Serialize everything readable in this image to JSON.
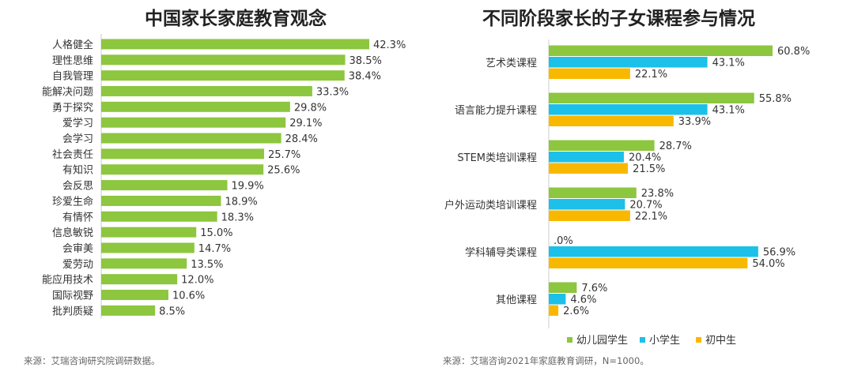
{
  "chart_data": [
    {
      "type": "bar",
      "orientation": "horizontal",
      "title": "中国家长家庭教育观念",
      "categories": [
        "人格健全",
        "理性思维",
        "自我管理",
        "能解决问题",
        "勇于探究",
        "爱学习",
        "会学习",
        "社会责任",
        "有知识",
        "会反思",
        "珍爱生命",
        "有情怀",
        "信息敏锐",
        "会审美",
        "爱劳动",
        "能应用技术",
        "国际视野",
        "批判质疑"
      ],
      "values": [
        42.3,
        38.5,
        38.4,
        33.3,
        29.8,
        29.1,
        28.4,
        25.7,
        25.6,
        19.9,
        18.9,
        18.3,
        15.0,
        14.7,
        13.5,
        12.0,
        10.6,
        8.5
      ],
      "value_labels": [
        "42.3%",
        "38.5%",
        "38.4%",
        "33.3%",
        "29.8%",
        "29.1%",
        "28.4%",
        "25.7%",
        "25.6%",
        "19.9%",
        "18.9%",
        "18.3%",
        "15.0%",
        "14.7%",
        "13.5%",
        "12.0%",
        "10.6%",
        "8.5%"
      ],
      "color": "#8DC63F",
      "source": "来源：艾瑞咨询研究院调研数据。"
    },
    {
      "type": "bar",
      "orientation": "horizontal",
      "title": "不同阶段家长的子女课程参与情况",
      "categories": [
        "艺术类课程",
        "语言能力提升课程",
        "STEM类培训课程",
        "户外运动类培训课程",
        "学科辅导类课程",
        "其他课程"
      ],
      "series": [
        {
          "name": "幼儿园学生",
          "color": "#8DC63F",
          "values": [
            60.8,
            55.8,
            28.7,
            23.8,
            0.0,
            7.6
          ],
          "labels": [
            "60.8%",
            "55.8%",
            "28.7%",
            "23.8%",
            ".0%",
            "7.6%"
          ]
        },
        {
          "name": "小学生",
          "color": "#1CC0E8",
          "values": [
            43.1,
            43.1,
            20.4,
            20.7,
            56.9,
            4.6
          ],
          "labels": [
            "43.1%",
            "43.1%",
            "20.4%",
            "20.7%",
            "56.9%",
            "4.6%"
          ]
        },
        {
          "name": "初中生",
          "color": "#F9B800",
          "values": [
            22.1,
            33.9,
            21.5,
            22.1,
            54.0,
            2.6
          ],
          "labels": [
            "22.1%",
            "33.9%",
            "21.5%",
            "22.1%",
            "54.0%",
            "2.6%"
          ]
        }
      ],
      "legend_position": "bottom",
      "source": "来源：艾瑞咨询2021年家庭教育调研，N=1000。"
    }
  ]
}
